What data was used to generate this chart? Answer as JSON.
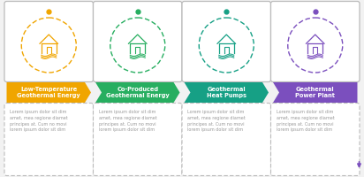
{
  "background_color": "#f2f2f2",
  "card_bg": "#ffffff",
  "steps": [
    {
      "title": "Low-Temperature\nGeothermal Energy",
      "color": "#f0a500",
      "icon_color": "#f0a500",
      "text": "Lorem ipsum dolor sit dim\namet, mea regione diamet\nprincipes at. Cum no movi\nlorem ipsum dolor sit dim"
    },
    {
      "title": "Co-Produced\nGeothermal Energy",
      "color": "#27ae60",
      "icon_color": "#27ae60",
      "text": "Lorem ipsum dolor sit dim\namet, mea regione diamet\nprincipes at. Cum no movi\nlorem ipsum dolor sit dim"
    },
    {
      "title": "Geothermal\nHeat Pumps",
      "color": "#16a085",
      "icon_color": "#16a085",
      "text": "Lorem ipsum dolor sit dim\namet, mea regione diamet\nprincipes at. Cum no movi\nlorem ipsum dolor sit dim"
    },
    {
      "title": "Geothermal\nPower Plant",
      "color": "#7b4fbe",
      "icon_color": "#7b4fbe",
      "text": "Lorem ipsum dolor sit dim\namet, mea regione diamet\nprincipes at. Cum no movi\nlorem ipsum dolor sit dim"
    }
  ],
  "connector_color": "#bbbbbb",
  "text_color": "#999999",
  "title_text_color": "#ffffff",
  "figsize": [
    4.12,
    2.0
  ],
  "dpi": 100
}
